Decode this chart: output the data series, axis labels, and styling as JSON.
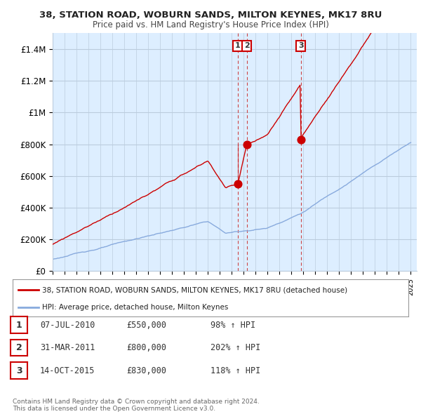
{
  "title": "38, STATION ROAD, WOBURN SANDS, MILTON KEYNES, MK17 8RU",
  "subtitle": "Price paid vs. HM Land Registry's House Price Index (HPI)",
  "ylim": [
    0,
    1500000
  ],
  "yticks": [
    0,
    200000,
    400000,
    600000,
    800000,
    1000000,
    1200000,
    1400000
  ],
  "ytick_labels": [
    "£0",
    "£200K",
    "£400K",
    "£600K",
    "£800K",
    "£1M",
    "£1.2M",
    "£1.4M"
  ],
  "house_color": "#cc0000",
  "hpi_color": "#88aadd",
  "chart_bg": "#ddeeff",
  "transactions": [
    {
      "date_num": 2010.51,
      "price": 550000,
      "label": "1"
    },
    {
      "date_num": 2011.25,
      "price": 800000,
      "label": "2"
    },
    {
      "date_num": 2015.79,
      "price": 830000,
      "label": "3"
    }
  ],
  "vline_color": "#cc4444",
  "legend_house_label": "38, STATION ROAD, WOBURN SANDS, MILTON KEYNES, MK17 8RU (detached house)",
  "legend_hpi_label": "HPI: Average price, detached house, Milton Keynes",
  "table_rows": [
    {
      "num": "1",
      "date": "07-JUL-2010",
      "price": "£550,000",
      "pct": "98% ↑ HPI"
    },
    {
      "num": "2",
      "date": "31-MAR-2011",
      "price": "£800,000",
      "pct": "202% ↑ HPI"
    },
    {
      "num": "3",
      "date": "14-OCT-2015",
      "price": "£830,000",
      "pct": "118% ↑ HPI"
    }
  ],
  "footer": "Contains HM Land Registry data © Crown copyright and database right 2024.\nThis data is licensed under the Open Government Licence v3.0.",
  "bg_color": "#ffffff",
  "grid_color": "#bbccdd"
}
